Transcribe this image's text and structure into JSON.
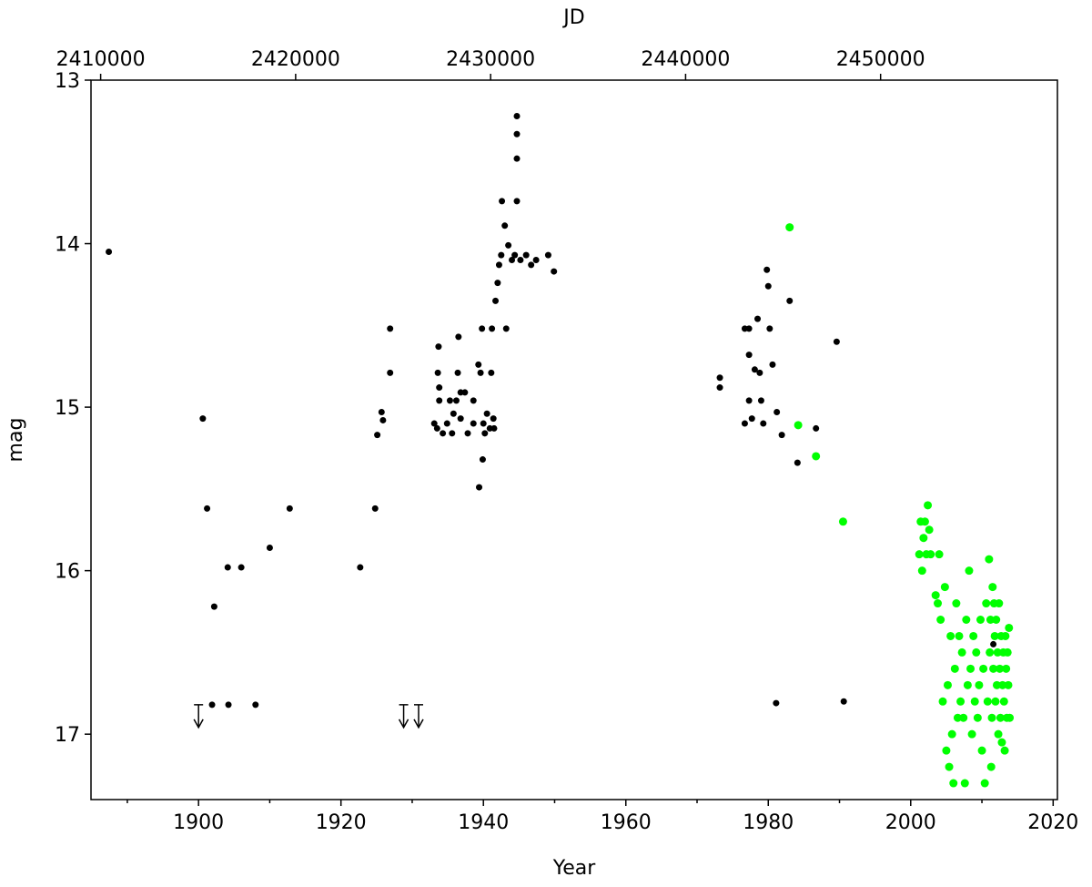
{
  "chart_data": {
    "type": "scatter",
    "xlabel": "Year",
    "ylabel": "mag",
    "x2label": "JD",
    "xlim": [
      1884.9,
      2020.6
    ],
    "xticks": [
      1900,
      1920,
      1940,
      1960,
      1980,
      2000,
      2020
    ],
    "xminorticks": [
      1890,
      1910,
      1930,
      1950,
      1970,
      1990,
      2010
    ],
    "x2lim": [
      2409505,
      2459069
    ],
    "x2ticks": [
      2410000,
      2420000,
      2430000,
      2440000,
      2450000
    ],
    "ylim": [
      17.4,
      13
    ],
    "yticks": [
      13,
      14,
      15,
      16,
      17
    ],
    "y_inverted": true,
    "series": [
      {
        "color": "#000000",
        "marker": "dot",
        "x": [
          1887.4,
          1900.6,
          1901.2,
          1902.2,
          1904.1,
          1906.0,
          1910.0,
          1912.8,
          1922.7,
          1924.8,
          1925.1,
          1925.7,
          1925.9,
          1926.9,
          1926.9,
          1901.9,
          1904.2,
          1908.0,
          1933.1,
          1933.5,
          1933.6,
          1933.7,
          1933.8,
          1933.8,
          1934.3,
          1934.9,
          1935.3,
          1935.6,
          1935.8,
          1936.2,
          1936.4,
          1936.5,
          1936.8,
          1936.8,
          1937.4,
          1937.8,
          1938.6,
          1938.6,
          1939.3,
          1939.4,
          1939.6,
          1939.8,
          1939.9,
          1940.0,
          1940.2,
          1940.5,
          1940.9,
          1941.1,
          1941.2,
          1941.4,
          1941.5,
          1941.7,
          1942.0,
          1942.2,
          1942.5,
          1942.6,
          1943.0,
          1943.2,
          1943.5,
          1944.0,
          1944.4,
          1944.7,
          1944.7,
          1944.7,
          1944.7,
          1945.2,
          1946.0,
          1946.7,
          1947.4,
          1949.1,
          1949.9,
          1973.2,
          1973.2,
          1976.7,
          1977.3,
          1977.3,
          1976.7,
          1977.3,
          1977.7,
          1978.1,
          1978.5,
          1978.8,
          1979.0,
          1979.3,
          1979.8,
          1980.0,
          1980.2,
          1980.6,
          1981.2,
          1981.9,
          1981.1,
          1983.0,
          1984.1,
          1986.7,
          1989.6,
          1990.6,
          2011.6
        ],
        "values": [
          14.05,
          15.07,
          15.62,
          16.22,
          15.98,
          15.98,
          15.86,
          15.62,
          15.98,
          15.62,
          15.17,
          15.03,
          15.08,
          14.52,
          14.79,
          16.82,
          16.82,
          16.82,
          15.1,
          15.13,
          14.79,
          14.63,
          14.88,
          14.96,
          15.16,
          15.1,
          14.96,
          15.16,
          15.04,
          14.96,
          14.79,
          14.57,
          14.91,
          15.07,
          14.91,
          15.16,
          14.96,
          15.1,
          14.74,
          15.49,
          14.79,
          14.52,
          15.32,
          15.1,
          15.16,
          15.04,
          15.13,
          14.79,
          14.52,
          15.07,
          15.13,
          14.35,
          14.24,
          14.13,
          14.07,
          13.74,
          13.89,
          14.52,
          14.01,
          14.1,
          14.07,
          13.74,
          13.48,
          13.33,
          13.22,
          14.1,
          14.07,
          14.13,
          14.1,
          14.07,
          14.17,
          14.82,
          14.88,
          14.52,
          14.52,
          14.68,
          15.1,
          14.96,
          15.07,
          14.77,
          14.46,
          14.79,
          14.96,
          15.1,
          14.16,
          14.26,
          14.52,
          14.74,
          15.03,
          15.17,
          16.81,
          14.35,
          15.34,
          15.13,
          14.6,
          16.8,
          16.45
        ]
      },
      {
        "color": "#000000",
        "marker": "arrow",
        "x": [
          1900.0,
          1928.8,
          1930.9
        ],
        "values": [
          16.82,
          16.82,
          16.82
        ]
      },
      {
        "color": "#00ff00",
        "marker": "dot",
        "x": [
          1983.0,
          1984.2,
          1986.7,
          1990.5,
          2001.2,
          2001.4,
          2001.6,
          2001.8,
          2002.0,
          2002.2,
          2002.4,
          2002.6,
          2002.8,
          2003.5,
          2003.8,
          2004.0,
          2004.2,
          2004.5,
          2004.8,
          2005.0,
          2005.2,
          2005.4,
          2005.6,
          2005.8,
          2006.0,
          2006.2,
          2006.4,
          2006.6,
          2006.8,
          2007.0,
          2007.2,
          2007.4,
          2007.6,
          2007.8,
          2008.0,
          2008.2,
          2008.4,
          2008.6,
          2008.8,
          2009.0,
          2009.2,
          2009.4,
          2009.6,
          2009.8,
          2010.0,
          2010.2,
          2010.4,
          2010.6,
          2010.8,
          2011.0,
          2011.1,
          2011.2,
          2011.3,
          2011.4,
          2011.5,
          2011.6,
          2011.7,
          2011.8,
          2011.9,
          2012.0,
          2012.1,
          2012.2,
          2012.3,
          2012.4,
          2012.5,
          2012.6,
          2012.7,
          2012.8,
          2012.9,
          2013.0,
          2013.1,
          2013.2,
          2013.3,
          2013.4,
          2013.5,
          2013.6,
          2013.7,
          2013.8,
          2013.9
        ],
        "values": [
          13.9,
          15.11,
          15.3,
          15.7,
          15.9,
          15.7,
          16.0,
          15.8,
          15.7,
          15.9,
          15.6,
          15.75,
          15.9,
          16.15,
          16.2,
          15.9,
          16.3,
          16.8,
          16.1,
          17.1,
          16.7,
          17.2,
          16.4,
          17.0,
          17.3,
          16.6,
          16.2,
          16.9,
          16.4,
          16.8,
          16.5,
          16.9,
          17.3,
          16.3,
          16.7,
          16.0,
          16.6,
          17.0,
          16.4,
          16.8,
          16.5,
          16.9,
          16.7,
          16.3,
          17.1,
          16.6,
          17.3,
          16.2,
          16.8,
          15.93,
          16.5,
          16.3,
          17.2,
          16.9,
          16.1,
          16.6,
          16.2,
          16.4,
          16.8,
          16.3,
          16.7,
          16.5,
          17.0,
          16.2,
          16.6,
          16.9,
          16.4,
          17.05,
          16.7,
          16.5,
          16.8,
          17.1,
          16.4,
          16.6,
          16.9,
          16.5,
          16.7,
          16.35,
          16.9
        ]
      }
    ]
  }
}
